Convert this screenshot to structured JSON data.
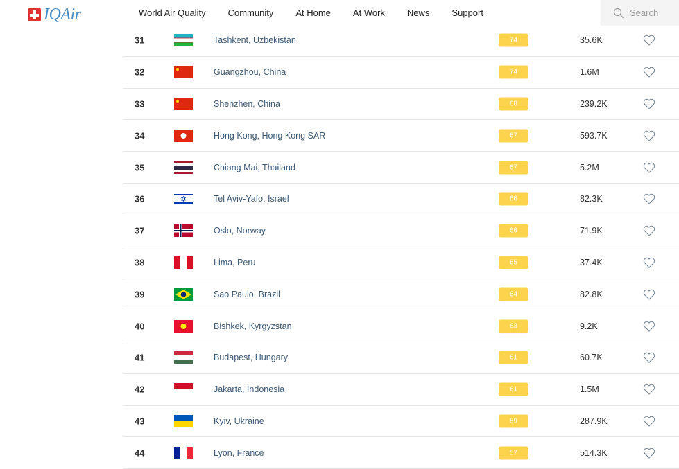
{
  "header": {
    "logo": "IQAir",
    "nav": [
      "World Air Quality",
      "Community",
      "At Home",
      "At Work",
      "News",
      "Support"
    ],
    "search_placeholder": "Search"
  },
  "colors": {
    "aqi_moderate": "#fcd34d",
    "logo": "#4b90c8"
  },
  "rows": [
    {
      "rank": "31",
      "flag": "uzbekistan",
      "city": "Tashkent, Uzbekistan",
      "aqi": "74",
      "followers": "35.6K"
    },
    {
      "rank": "32",
      "flag": "china",
      "city": "Guangzhou, China",
      "aqi": "74",
      "followers": "1.6M"
    },
    {
      "rank": "33",
      "flag": "china",
      "city": "Shenzhen, China",
      "aqi": "68",
      "followers": "239.2K"
    },
    {
      "rank": "34",
      "flag": "hong-kong",
      "city": "Hong Kong, Hong Kong SAR",
      "aqi": "67",
      "followers": "593.7K"
    },
    {
      "rank": "35",
      "flag": "thailand",
      "city": "Chiang Mai, Thailand",
      "aqi": "67",
      "followers": "5.2M"
    },
    {
      "rank": "36",
      "flag": "israel",
      "city": "Tel Aviv-Yafo, Israel",
      "aqi": "66",
      "followers": "82.3K"
    },
    {
      "rank": "37",
      "flag": "norway",
      "city": "Oslo, Norway",
      "aqi": "66",
      "followers": "71.9K"
    },
    {
      "rank": "38",
      "flag": "peru",
      "city": "Lima, Peru",
      "aqi": "65",
      "followers": "37.4K"
    },
    {
      "rank": "39",
      "flag": "brazil",
      "city": "Sao Paulo, Brazil",
      "aqi": "64",
      "followers": "82.8K"
    },
    {
      "rank": "40",
      "flag": "kyrgyzstan",
      "city": "Bishkek, Kyrgyzstan",
      "aqi": "63",
      "followers": "9.2K"
    },
    {
      "rank": "41",
      "flag": "hungary",
      "city": "Budapest, Hungary",
      "aqi": "61",
      "followers": "60.7K"
    },
    {
      "rank": "42",
      "flag": "indonesia",
      "city": "Jakarta, Indonesia",
      "aqi": "61",
      "followers": "1.5M"
    },
    {
      "rank": "43",
      "flag": "ukraine",
      "city": "Kyiv, Ukraine",
      "aqi": "59",
      "followers": "287.9K"
    },
    {
      "rank": "44",
      "flag": "france",
      "city": "Lyon, France",
      "aqi": "57",
      "followers": "514.3K"
    }
  ]
}
